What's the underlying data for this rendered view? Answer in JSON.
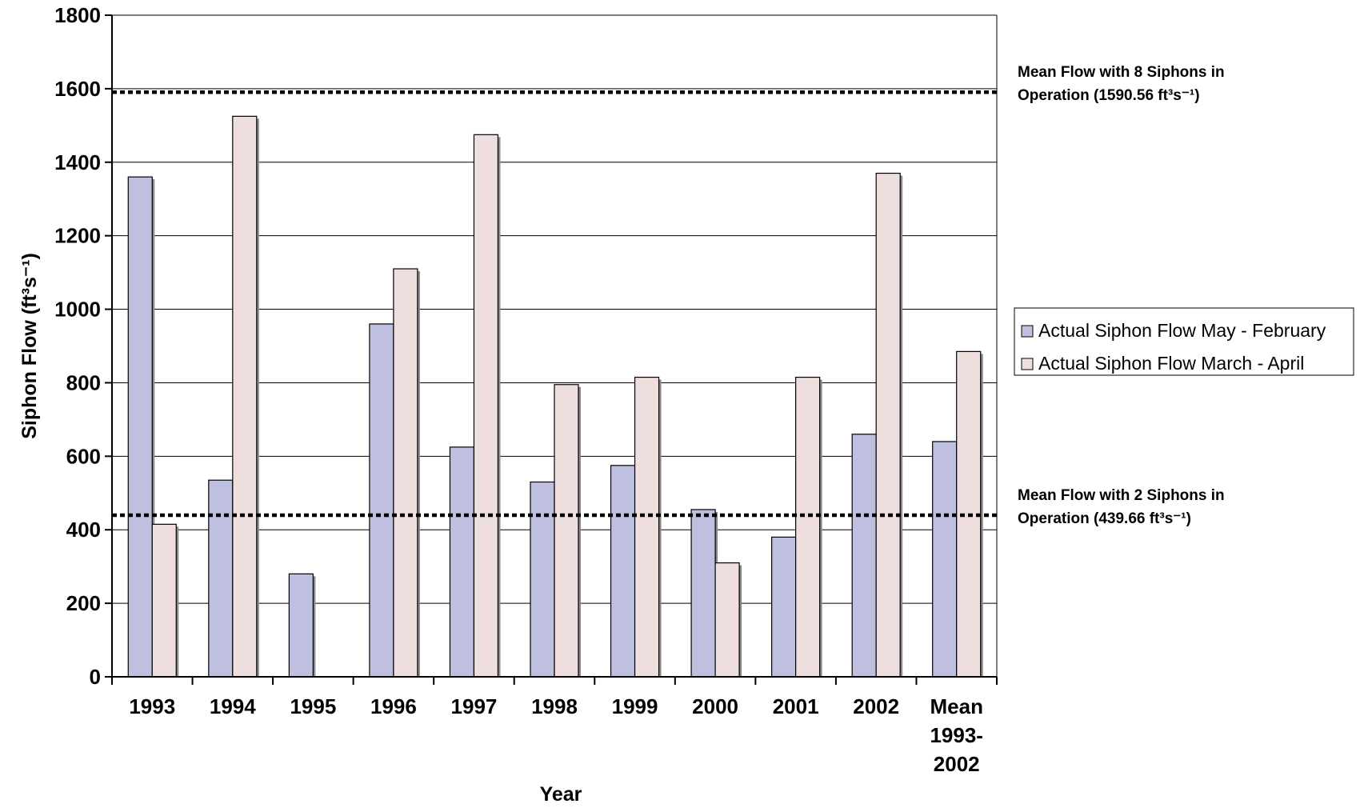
{
  "chart_data": {
    "type": "bar",
    "xlabel": "Year",
    "ylabel": "Siphon Flow (ft³s⁻¹)",
    "ylim": [
      0,
      1800
    ],
    "yticks": [
      0,
      200,
      400,
      600,
      800,
      1000,
      1200,
      1400,
      1600,
      1800
    ],
    "grid": true,
    "legend_position": "right",
    "categories": [
      [
        "1993"
      ],
      [
        "1994"
      ],
      [
        "1995"
      ],
      [
        "1996"
      ],
      [
        "1997"
      ],
      [
        "1998"
      ],
      [
        "1999"
      ],
      [
        "2000"
      ],
      [
        "2001"
      ],
      [
        "2002"
      ],
      [
        "Mean",
        "1993-",
        "2002"
      ]
    ],
    "series": [
      {
        "name": "Actual Siphon Flow May - February",
        "color": "#bfc0e0",
        "values": [
          1360,
          535,
          280,
          960,
          625,
          530,
          575,
          455,
          380,
          660,
          640
        ]
      },
      {
        "name": "Actual Siphon Flow March - April",
        "color": "#efdede",
        "values": [
          415,
          1525,
          null,
          1110,
          1475,
          795,
          815,
          310,
          815,
          1370,
          885
        ]
      }
    ],
    "reference_lines": [
      {
        "value": 1590.56,
        "label_lines": [
          "Mean Flow with 8 Siphons in",
          "Operation (1590.56 ft³s⁻¹)"
        ]
      },
      {
        "value": 439.66,
        "label_lines": [
          "Mean Flow with 2 Siphons in",
          "Operation (439.66 ft³s⁻¹)"
        ]
      }
    ]
  }
}
